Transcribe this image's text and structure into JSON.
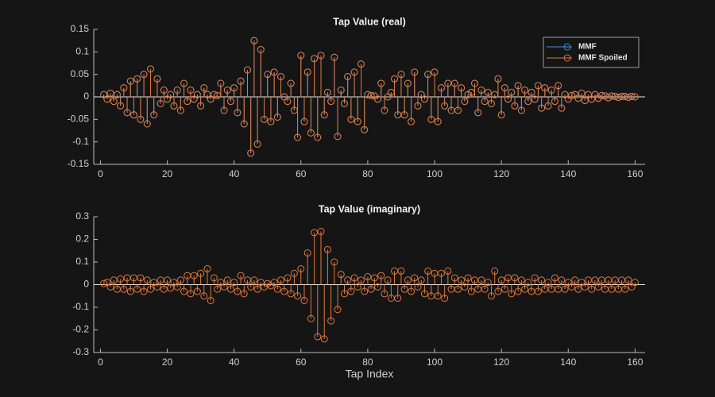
{
  "chart_data": [
    {
      "type": "stem",
      "title": "Tap Value (real)",
      "legend": "northeast",
      "xlim": [
        -2,
        163
      ],
      "xticks": [
        0,
        20,
        40,
        60,
        80,
        100,
        120,
        140,
        160
      ],
      "ylim": [
        -0.15,
        0.15
      ],
      "yticks": [
        -0.15,
        -0.1,
        -0.05,
        0,
        0.05,
        0.1,
        0.15
      ],
      "x": [
        1,
        2,
        3,
        4,
        5,
        6,
        7,
        8,
        9,
        10,
        11,
        12,
        13,
        14,
        15,
        16,
        17,
        18,
        19,
        20,
        21,
        22,
        23,
        24,
        25,
        26,
        27,
        28,
        29,
        30,
        31,
        32,
        33,
        34,
        35,
        36,
        37,
        38,
        39,
        40,
        41,
        42,
        43,
        44,
        45,
        46,
        47,
        48,
        49,
        50,
        51,
        52,
        53,
        54,
        55,
        56,
        57,
        58,
        59,
        60,
        61,
        62,
        63,
        64,
        65,
        66,
        67,
        68,
        69,
        70,
        71,
        72,
        73,
        74,
        75,
        76,
        77,
        78,
        79,
        80,
        81,
        82,
        83,
        84,
        85,
        86,
        87,
        88,
        89,
        90,
        91,
        92,
        93,
        94,
        95,
        96,
        97,
        98,
        99,
        100,
        101,
        102,
        103,
        104,
        105,
        106,
        107,
        108,
        109,
        110,
        111,
        112,
        113,
        114,
        115,
        116,
        117,
        118,
        119,
        120,
        121,
        122,
        123,
        124,
        125,
        126,
        127,
        128,
        129,
        130,
        131,
        132,
        133,
        134,
        135,
        136,
        137,
        138,
        139,
        140,
        141,
        142,
        143,
        144,
        145,
        146,
        147,
        148,
        149,
        150,
        151,
        152,
        153,
        154,
        155,
        156,
        157,
        158,
        159,
        160
      ],
      "series": [
        {
          "name": "MMF",
          "color": "#3d8fd9",
          "values": [
            0.005,
            -0.005,
            0.008,
            -0.01,
            0.005,
            -0.02,
            0.02,
            -0.035,
            0.035,
            -0.04,
            0.04,
            -0.05,
            0.05,
            -0.06,
            0.062,
            -0.04,
            0.04,
            -0.015,
            0.015,
            -0.005,
            0.005,
            -0.02,
            0.015,
            -0.03,
            0.03,
            -0.01,
            0.015,
            -0.005,
            0.005,
            -0.02,
            0.02,
            0.005,
            -0.005,
            0.005,
            0.003,
            0.03,
            -0.03,
            0.015,
            -0.01,
            0.02,
            -0.035,
            0.035,
            -0.06,
            0.06,
            -0.125,
            0.125,
            -0.105,
            0.105,
            -0.05,
            0.05,
            -0.055,
            0.055,
            -0.045,
            0.045,
            0,
            -0.01,
            0.03,
            -0.03,
            -0.09,
            0.092,
            -0.055,
            0.055,
            -0.08,
            0.085,
            -0.09,
            0.092,
            -0.04,
            0.01,
            -0.01,
            0.088,
            -0.088,
            0.015,
            -0.015,
            0.045,
            -0.05,
            0.055,
            -0.055,
            0.073,
            -0.073,
            0.005,
            0.003,
            0.002,
            -0.005,
            0.03,
            -0.03,
            0,
            0.01,
            0.04,
            -0.04,
            0.05,
            -0.04,
            0.03,
            -0.055,
            0.055,
            -0.02,
            0.005,
            -0.005,
            0.05,
            -0.05,
            0.055,
            -0.055,
            0.02,
            -0.02,
            0.03,
            -0.03,
            0.03,
            -0.03,
            0.02,
            -0.01,
            0.005,
            0.01,
            0.03,
            -0.035,
            0.015,
            -0.01,
            0.01,
            -0.015,
            0.005,
            0.04,
            -0.04,
            0.02,
            -0.005,
            0.01,
            -0.02,
            0.025,
            -0.03,
            0.015,
            -0.01,
            0.01,
            -0.005,
            0.025,
            -0.025,
            0.02,
            -0.02,
            0.015,
            -0.01,
            0.025,
            -0.025,
            0.005,
            -0.005,
            0.003,
            0.005,
            -0.003,
            0.008,
            -0.008,
            0.005,
            -0.005,
            0.005,
            -0.003,
            0.003,
            0.002,
            -0.002,
            0.002,
            0.001,
            -0.001,
            0.001,
            0.001,
            -0.001,
            0.001,
            0
          ]
        },
        {
          "name": "MMF Spoiled",
          "color": "#e0773d",
          "values": [
            0.005,
            -0.005,
            0.008,
            -0.01,
            0.005,
            -0.02,
            0.02,
            -0.035,
            0.035,
            -0.04,
            0.04,
            -0.05,
            0.05,
            -0.06,
            0.062,
            -0.04,
            0.04,
            -0.015,
            0.015,
            -0.005,
            0.005,
            -0.02,
            0.015,
            -0.03,
            0.03,
            -0.01,
            0.015,
            -0.005,
            0.005,
            -0.02,
            0.02,
            0.005,
            -0.005,
            0.005,
            0.003,
            0.03,
            -0.03,
            0.015,
            -0.01,
            0.02,
            -0.035,
            0.035,
            -0.06,
            0.06,
            -0.125,
            0.125,
            -0.105,
            0.105,
            -0.05,
            0.05,
            -0.055,
            0.055,
            -0.045,
            0.045,
            0,
            -0.01,
            0.03,
            -0.03,
            -0.09,
            0.092,
            -0.055,
            0.055,
            -0.08,
            0.085,
            -0.09,
            0.092,
            -0.04,
            0.01,
            -0.01,
            0.088,
            -0.088,
            0.015,
            -0.015,
            0.045,
            -0.05,
            0.055,
            -0.055,
            0.073,
            -0.073,
            0.005,
            0.003,
            0.002,
            -0.005,
            0.03,
            -0.03,
            0,
            0.01,
            0.04,
            -0.04,
            0.05,
            -0.04,
            0.03,
            -0.055,
            0.055,
            -0.02,
            0.005,
            -0.005,
            0.05,
            -0.05,
            0.055,
            -0.055,
            0.02,
            -0.02,
            0.03,
            -0.03,
            0.03,
            -0.03,
            0.02,
            -0.01,
            0.005,
            0.01,
            0.03,
            -0.035,
            0.015,
            -0.01,
            0.01,
            -0.015,
            0.005,
            0.04,
            -0.04,
            0.02,
            -0.005,
            0.01,
            -0.02,
            0.025,
            -0.03,
            0.015,
            -0.01,
            0.01,
            -0.005,
            0.025,
            -0.025,
            0.02,
            -0.02,
            0.015,
            -0.01,
            0.025,
            -0.025,
            0.005,
            -0.005,
            0.003,
            0.005,
            -0.003,
            0.008,
            -0.008,
            0.005,
            -0.005,
            0.005,
            -0.003,
            0.003,
            0.002,
            -0.002,
            0.002,
            0.001,
            -0.001,
            0.001,
            0.001,
            -0.001,
            0.001,
            0
          ]
        }
      ]
    },
    {
      "type": "stem",
      "title": "Tap Value (imaginary)",
      "x_label": "Tap Index",
      "xlim": [
        -2,
        163
      ],
      "xticks": [
        0,
        20,
        40,
        60,
        80,
        100,
        120,
        140,
        160
      ],
      "ylim": [
        -0.3,
        0.3
      ],
      "yticks": [
        -0.3,
        -0.2,
        -0.1,
        0,
        0.1,
        0.2,
        0.3
      ],
      "x": [
        1,
        2,
        3,
        4,
        5,
        6,
        7,
        8,
        9,
        10,
        11,
        12,
        13,
        14,
        15,
        16,
        17,
        18,
        19,
        20,
        21,
        22,
        23,
        24,
        25,
        26,
        27,
        28,
        29,
        30,
        31,
        32,
        33,
        34,
        35,
        36,
        37,
        38,
        39,
        40,
        41,
        42,
        43,
        44,
        45,
        46,
        47,
        48,
        49,
        50,
        51,
        52,
        53,
        54,
        55,
        56,
        57,
        58,
        59,
        60,
        61,
        62,
        63,
        64,
        65,
        66,
        67,
        68,
        69,
        70,
        71,
        72,
        73,
        74,
        75,
        76,
        77,
        78,
        79,
        80,
        81,
        82,
        83,
        84,
        85,
        86,
        87,
        88,
        89,
        90,
        91,
        92,
        93,
        94,
        95,
        96,
        97,
        98,
        99,
        100,
        101,
        102,
        103,
        104,
        105,
        106,
        107,
        108,
        109,
        110,
        111,
        112,
        113,
        114,
        115,
        116,
        117,
        118,
        119,
        120,
        121,
        122,
        123,
        124,
        125,
        126,
        127,
        128,
        129,
        130,
        131,
        132,
        133,
        134,
        135,
        136,
        137,
        138,
        139,
        140,
        141,
        142,
        143,
        144,
        145,
        146,
        147,
        148,
        149,
        150,
        151,
        152,
        153,
        154,
        155,
        156,
        157,
        158,
        159,
        160
      ],
      "series": [
        {
          "color": "#e0773d",
          "values": [
            0.005,
            0.01,
            -0.01,
            0.02,
            -0.02,
            0.025,
            -0.02,
            0.03,
            -0.03,
            0.03,
            -0.02,
            0.03,
            -0.03,
            0.02,
            -0.02,
            0.01,
            -0.01,
            0.02,
            -0.02,
            0.02,
            -0.015,
            0.01,
            -0.01,
            0.02,
            -0.03,
            0.04,
            -0.04,
            0.04,
            -0.03,
            0.05,
            -0.05,
            0.07,
            -0.07,
            0.03,
            -0.02,
            0.01,
            -0.01,
            0.02,
            -0.02,
            0.01,
            -0.03,
            0.04,
            -0.04,
            0.02,
            -0.01,
            0.02,
            -0.02,
            0.01,
            -0.01,
            0.005,
            -0.005,
            0.01,
            -0.02,
            0.02,
            -0.03,
            0.03,
            -0.04,
            0.05,
            -0.05,
            0.07,
            -0.07,
            0.14,
            -0.15,
            0.23,
            -0.23,
            0.235,
            -0.24,
            0.155,
            -0.16,
            0.1,
            -0.11,
            0.045,
            -0.04,
            0.02,
            -0.03,
            0.03,
            -0.01,
            0.02,
            -0.03,
            0.035,
            -0.02,
            0.03,
            -0.01,
            0.04,
            -0.04,
            0.02,
            -0.06,
            0.06,
            -0.06,
            0.06,
            -0.02,
            0.02,
            -0.03,
            0.03,
            -0.01,
            0.02,
            -0.04,
            0.06,
            -0.05,
            0.05,
            -0.05,
            0.05,
            -0.06,
            0.06,
            -0.02,
            0.03,
            -0.02,
            0.02,
            -0.01,
            0.03,
            -0.03,
            0.02,
            -0.02,
            0.02,
            -0.02,
            0.01,
            -0.05,
            0.06,
            -0.03,
            0.02,
            -0.02,
            0.03,
            -0.04,
            0.03,
            -0.03,
            0.02,
            -0.02,
            0.01,
            -0.03,
            0.03,
            -0.03,
            0.02,
            -0.02,
            0.01,
            -0.02,
            0.03,
            -0.02,
            0.02,
            -0.02,
            0.01,
            -0.01,
            0.02,
            -0.02,
            0.01,
            -0.01,
            0.02,
            -0.02,
            0.02,
            -0.01,
            0.02,
            -0.02,
            0.02,
            -0.02,
            0.02,
            -0.02,
            0.02,
            -0.02,
            0.02,
            -0.01,
            0.01
          ]
        }
      ]
    }
  ]
}
